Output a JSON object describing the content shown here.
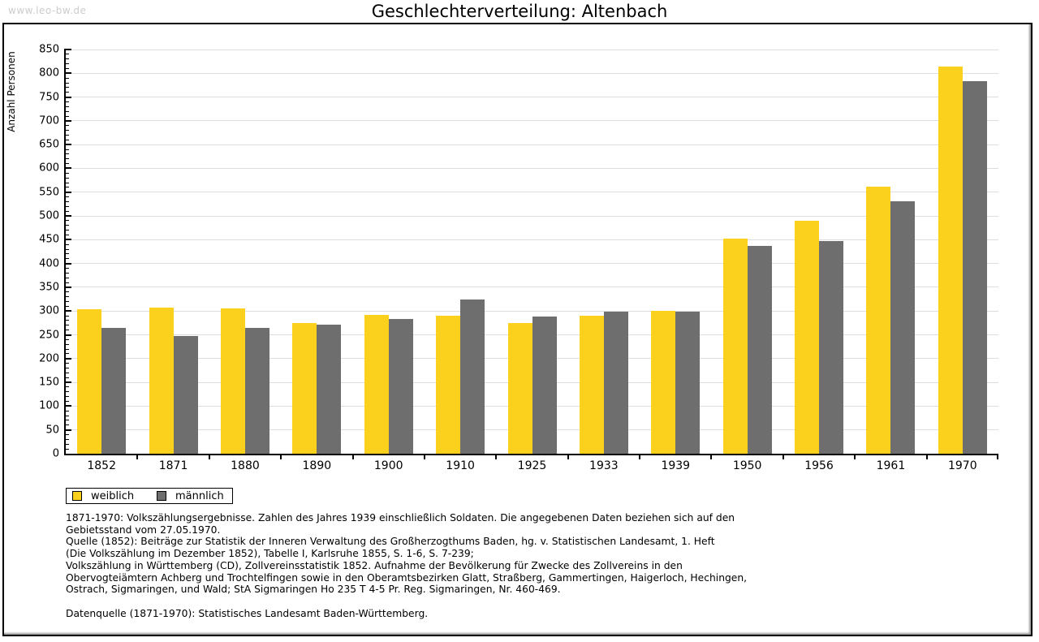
{
  "watermark": "www.leo-bw.de",
  "title": "Geschlechterverteilung: Altenbach",
  "colors": {
    "weiblich": "#FCD11E",
    "maennlich": "#6E6E6E",
    "gridline": "#DDDDDD",
    "axis": "#000000",
    "watermark": "#CCCCCC"
  },
  "chart_data": {
    "type": "bar",
    "title": "Geschlechterverteilung: Altenbach",
    "xlabel": "",
    "ylabel": "Anzahl Personen",
    "ylim": [
      0,
      850
    ],
    "ytick_step": 50,
    "ytick_minor_step": 10,
    "grid": true,
    "legend_position": "bottom-left",
    "categories": [
      "1852",
      "1871",
      "1880",
      "1890",
      "1900",
      "1910",
      "1925",
      "1933",
      "1939",
      "1950",
      "1956",
      "1961",
      "1970"
    ],
    "series": [
      {
        "name": "weiblich",
        "color": "#FCD11E",
        "values": [
          304,
          308,
          305,
          274,
          292,
          291,
          274,
          291,
          300,
          453,
          490,
          561,
          814
        ]
      },
      {
        "name": "männlich",
        "color": "#6E6E6E",
        "values": [
          265,
          248,
          264,
          271,
          284,
          325,
          289,
          299,
          299,
          437,
          447,
          530,
          783
        ]
      }
    ]
  },
  "footnotes": [
    "1871-1970: Volkszählungsergebnisse. Zahlen des Jahres 1939 einschließlich Soldaten. Die angegebenen Daten beziehen sich auf den",
    "Gebietsstand vom 27.05.1970.",
    "Quelle (1852): Beiträge zur Statistik der Inneren Verwaltung des Großherzogthums Baden, hg. v. Statistischen Landesamt, 1. Heft",
    "(Die Volkszählung im Dezember 1852), Tabelle I, Karlsruhe 1855, S. 1-6, S. 7-239;",
    "Volkszählung in Württemberg (CD), Zollvereinsstatistik 1852. Aufnahme der Bevölkerung für Zwecke des Zollvereins in den",
    "Obervogteiämtern Achberg und Trochtelfingen sowie in den Oberamtsbezirken Glatt, Straßberg, Gammertingen, Haigerloch, Hechingen,",
    "Ostrach, Sigmaringen, und Wald; StA Sigmaringen Ho 235 T 4-5 Pr. Reg. Sigmaringen, Nr. 460-469.",
    "",
    "Datenquelle (1871-1970): Statistisches Landesamt Baden-Württemberg."
  ]
}
